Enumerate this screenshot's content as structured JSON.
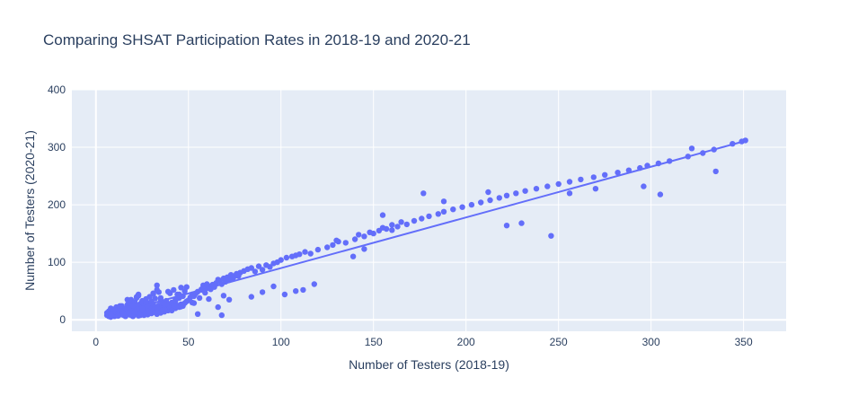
{
  "chart_data": {
    "type": "scatter",
    "title": "Comparing SHSAT Participation Rates in 2018-19 and 2020-21",
    "xlabel": "Number of Testers (2018-19)",
    "ylabel": "Number of Testers (2020-21)",
    "xlim": [
      -13,
      373
    ],
    "ylim": [
      -20,
      400
    ],
    "xticks": [
      0,
      50,
      100,
      150,
      200,
      250,
      300,
      350
    ],
    "yticks": [
      0,
      100,
      200,
      300,
      400
    ],
    "grid": true,
    "legend": "none",
    "colors": {
      "background": "#e5ecf6",
      "grid": "#ffffff",
      "marker": "#636efa",
      "trendline": "#636efa",
      "text": "#2a3f5f"
    },
    "trendline": {
      "x": [
        6,
        352
      ],
      "y": [
        7,
        312
      ]
    },
    "points": {
      "x": [
        6,
        6,
        7,
        7,
        8,
        8,
        8,
        9,
        9,
        9,
        10,
        10,
        10,
        11,
        11,
        11,
        12,
        12,
        12,
        13,
        13,
        14,
        14,
        14,
        15,
        15,
        16,
        16,
        16,
        17,
        17,
        17,
        18,
        18,
        18,
        18,
        19,
        19,
        19,
        19,
        20,
        20,
        20,
        20,
        21,
        21,
        21,
        21,
        22,
        22,
        22,
        22,
        23,
        23,
        23,
        23,
        24,
        24,
        24,
        25,
        25,
        25,
        26,
        26,
        26,
        27,
        27,
        27,
        28,
        28,
        28,
        29,
        29,
        29,
        30,
        30,
        30,
        31,
        31,
        31,
        32,
        32,
        32,
        33,
        33,
        33,
        34,
        34,
        34,
        35,
        35,
        35,
        36,
        36,
        37,
        37,
        38,
        38,
        39,
        39,
        40,
        40,
        41,
        41,
        42,
        42,
        43,
        43,
        44,
        44,
        45,
        45,
        46,
        46,
        47,
        47,
        48,
        48,
        49,
        50,
        51,
        52,
        53,
        54,
        55,
        56,
        57,
        58,
        59,
        60,
        61,
        62,
        63,
        64,
        65,
        66,
        67,
        68,
        69,
        70,
        71,
        72,
        73,
        74,
        75,
        76,
        78,
        80,
        82,
        84,
        86,
        88,
        90,
        92,
        94,
        96,
        98,
        100,
        103,
        106,
        108,
        110,
        113,
        116,
        120,
        125,
        128,
        131,
        135,
        140,
        142,
        145,
        148,
        150,
        153,
        155,
        157,
        160,
        163,
        165,
        168,
        172,
        176,
        180,
        185,
        188,
        193,
        198,
        203,
        208,
        213,
        218,
        222,
        227,
        232,
        238,
        244,
        250,
        256,
        262,
        269,
        275,
        282,
        288,
        294,
        298,
        304,
        310,
        320,
        328,
        334,
        344,
        349,
        351,
        8,
        12,
        16,
        18,
        20,
        24,
        22,
        28,
        33,
        37,
        42,
        45,
        52,
        55,
        60,
        66,
        68,
        72,
        77,
        84,
        90,
        96,
        102,
        108,
        112,
        118,
        130,
        139,
        145,
        155,
        160,
        177,
        188,
        212,
        222,
        230,
        246,
        256,
        270,
        296,
        305,
        322,
        335,
        8,
        10,
        13,
        15,
        17,
        21,
        23,
        25,
        27,
        29,
        31,
        33,
        35,
        37,
        39,
        41,
        43,
        46,
        49,
        53,
        57,
        61,
        64,
        69
      ],
      "y": [
        8,
        12,
        6,
        15,
        10,
        20,
        5,
        9,
        14,
        7,
        11,
        18,
        6,
        8,
        13,
        22,
        10,
        16,
        7,
        12,
        20,
        9,
        15,
        24,
        8,
        14,
        11,
        19,
        6,
        10,
        17,
        26,
        9,
        13,
        22,
        30,
        8,
        15,
        21,
        35,
        10,
        18,
        27,
        6,
        12,
        20,
        31,
        9,
        14,
        23,
        38,
        11,
        7,
        16,
        25,
        42,
        10,
        19,
        28,
        13,
        22,
        33,
        8,
        17,
        26,
        12,
        21,
        36,
        9,
        18,
        29,
        14,
        24,
        40,
        11,
        20,
        32,
        16,
        27,
        45,
        13,
        22,
        37,
        10,
        19,
        60,
        15,
        25,
        48,
        12,
        21,
        34,
        17,
        29,
        14,
        24,
        19,
        33,
        16,
        27,
        21,
        46,
        18,
        30,
        23,
        52,
        20,
        35,
        25,
        44,
        22,
        38,
        27,
        56,
        24,
        41,
        29,
        50,
        32,
        34,
        39,
        44,
        41,
        46,
        49,
        38,
        52,
        60,
        47,
        55,
        58,
        53,
        61,
        57,
        64,
        70,
        68,
        62,
        72,
        66,
        74,
        69,
        78,
        71,
        76,
        80,
        82,
        85,
        88,
        90,
        84,
        93,
        87,
        95,
        92,
        98,
        100,
        104,
        108,
        110,
        112,
        114,
        118,
        115,
        122,
        126,
        130,
        136,
        134,
        140,
        148,
        145,
        152,
        150,
        155,
        160,
        158,
        165,
        162,
        170,
        166,
        172,
        176,
        180,
        184,
        188,
        192,
        196,
        200,
        204,
        208,
        212,
        216,
        220,
        224,
        228,
        232,
        236,
        240,
        244,
        248,
        252,
        256,
        260,
        264,
        268,
        272,
        276,
        284,
        290,
        296,
        306,
        310,
        312,
        5,
        7,
        10,
        12,
        25,
        8,
        40,
        15,
        52,
        18,
        27,
        44,
        30,
        10,
        62,
        22,
        8,
        35,
        76,
        40,
        48,
        58,
        44,
        50,
        52,
        62,
        138,
        110,
        123,
        182,
        156,
        220,
        206,
        222,
        164,
        168,
        146,
        220,
        228,
        232,
        218,
        298,
        258,
        9,
        18,
        24,
        11,
        35,
        14,
        44,
        19,
        31,
        12,
        46,
        21,
        38,
        27,
        49,
        16,
        33,
        23,
        57,
        29,
        53,
        36,
        61,
        42
      ]
    }
  }
}
